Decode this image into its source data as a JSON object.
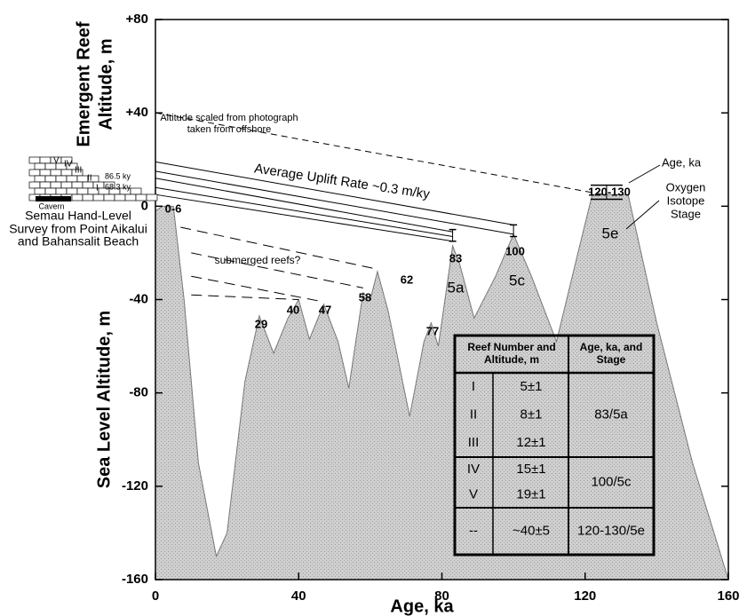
{
  "chart_data": {
    "type": "area",
    "x_label": "Age, ka",
    "y_label": "Sea Level Altitude, m",
    "y_label_upper": [
      "Emergent Reef",
      "Altitude, m"
    ],
    "xlim": [
      0,
      160
    ],
    "ylim": [
      -160,
      80
    ],
    "xticks": [
      0,
      40,
      80,
      120,
      160
    ],
    "yticks": [
      {
        "value": 80,
        "label": "+80"
      },
      {
        "value": 40,
        "label": "+40"
      },
      0,
      -40,
      -80,
      -120,
      -160
    ],
    "color": "#cfcfcf",
    "x": [
      0,
      2,
      5,
      8,
      12,
      17,
      20,
      25,
      29,
      33,
      37,
      40,
      43,
      47,
      51,
      54,
      58,
      60,
      62,
      65,
      71,
      75,
      77,
      79,
      83,
      85,
      89,
      95,
      100,
      105,
      112,
      118,
      122,
      126,
      132,
      140,
      150,
      160
    ],
    "values": [
      -2,
      0,
      0,
      -40,
      -110,
      -150,
      -140,
      -75,
      -47,
      -63,
      -48,
      -40,
      -57,
      -42,
      -58,
      -78,
      -37,
      -40,
      -28,
      -45,
      -90,
      -58,
      -50,
      -60,
      -17,
      -25,
      -48,
      -30,
      -12,
      -30,
      -58,
      -20,
      5,
      5,
      5,
      -50,
      -110,
      -160
    ],
    "reef_labels": [
      "0-6",
      "29",
      "40",
      "47",
      "58",
      "62",
      "77",
      "83",
      "100",
      "120-130"
    ],
    "stage_labels": [
      "5a",
      "5c",
      "5e"
    ],
    "annotations": {
      "photo": [
        "Altitude scaled from photograph",
        "taken from offshore"
      ],
      "uplift": "Average Uplift Rate ~0.3 m/ky",
      "submerged": "submerged reefs?",
      "age": "Age, ka",
      "stage": [
        "Oxygen",
        "Isotope",
        "Stage"
      ]
    },
    "inset": {
      "reefs": [
        "V",
        "IV",
        "III",
        "II",
        "I"
      ],
      "ages": [
        "86.5 ky",
        "68.3 ky"
      ],
      "cavern": "Cavern",
      "caption": [
        "Semau Hand-Level",
        "Survey from Point Aikalui",
        "and Bahansalit Beach"
      ]
    },
    "table": {
      "header": [
        "Reef Number and",
        "Altitude, m",
        "Age, ka, and",
        "Stage"
      ],
      "groups": [
        {
          "rows": [
            [
              "I",
              "5±1"
            ],
            [
              "II",
              "8±1"
            ],
            [
              "III",
              "12±1"
            ]
          ],
          "stage": "83/5a"
        },
        {
          "rows": [
            [
              "IV",
              "15±1"
            ],
            [
              "V",
              "19±1"
            ]
          ],
          "stage": "100/5c"
        },
        {
          "rows": [
            [
              "--",
              "~40±5"
            ]
          ],
          "stage": "120-130/5e"
        }
      ]
    }
  }
}
